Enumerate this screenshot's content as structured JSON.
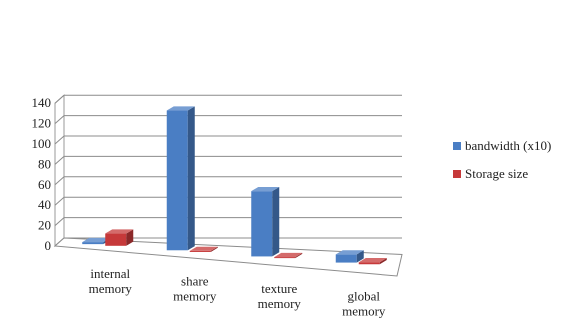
{
  "chart_data": {
    "type": "bar",
    "categories": [
      [
        "internal",
        "memory"
      ],
      [
        "share",
        "memory"
      ],
      [
        "texture",
        "memory"
      ],
      [
        "global",
        "memory"
      ]
    ],
    "series": [
      {
        "name": "bandwidth (x10)",
        "color": "#4a7ec4",
        "values": [
          2,
          137,
          64,
          8
        ]
      },
      {
        "name": "Storage size",
        "color": "#c6393a",
        "values": [
          12,
          1,
          1,
          2
        ]
      }
    ],
    "ylim": [
      0,
      140
    ],
    "yticks": [
      0,
      20,
      40,
      60,
      80,
      100,
      120,
      140
    ],
    "grid": true,
    "legend_position": "right"
  }
}
